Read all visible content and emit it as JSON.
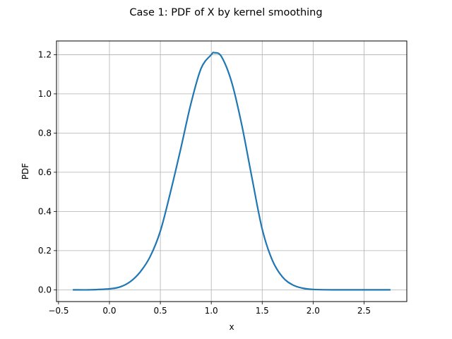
{
  "chart_data": {
    "type": "line",
    "title": "Case 1: PDF of X by kernel smoothing",
    "xlabel": "x",
    "ylabel": "PDF",
    "xlim": [
      -0.52,
      2.92
    ],
    "ylim": [
      -0.06,
      1.27
    ],
    "xticks": [
      -0.5,
      0.0,
      0.5,
      1.0,
      1.5,
      2.0,
      2.5
    ],
    "xtick_labels": [
      "−0.5",
      "0.0",
      "0.5",
      "1.0",
      "1.5",
      "2.0",
      "2.5"
    ],
    "yticks": [
      0.0,
      0.2,
      0.4,
      0.6,
      0.8,
      1.0,
      1.2
    ],
    "ytick_labels": [
      "0.0",
      "0.2",
      "0.4",
      "0.6",
      "0.8",
      "1.0",
      "1.2"
    ],
    "grid": true,
    "series": [
      {
        "color": "#1f77b4",
        "x": [
          -0.36,
          -0.2,
          0.0,
          0.1,
          0.2,
          0.3,
          0.4,
          0.5,
          0.6,
          0.7,
          0.8,
          0.9,
          1.0,
          1.03,
          1.1,
          1.2,
          1.3,
          1.4,
          1.5,
          1.6,
          1.7,
          1.8,
          1.9,
          2.0,
          2.2,
          2.5,
          2.76
        ],
        "y": [
          0.0,
          0.0,
          0.005,
          0.014,
          0.04,
          0.09,
          0.17,
          0.3,
          0.5,
          0.72,
          0.95,
          1.13,
          1.2,
          1.21,
          1.19,
          1.06,
          0.84,
          0.57,
          0.31,
          0.15,
          0.065,
          0.025,
          0.008,
          0.002,
          0.0,
          0.0,
          0.0
        ]
      }
    ]
  }
}
